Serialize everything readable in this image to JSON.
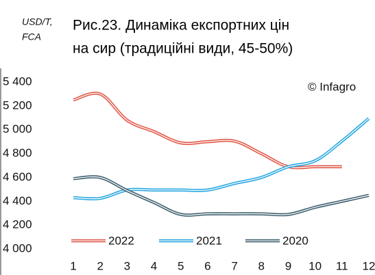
{
  "chart_data": {
    "type": "line",
    "title": [
      "Рис.23. Динаміка експортних цін",
      "на сир (традиційні види, 45-50%)"
    ],
    "y_label": [
      "USD/T,",
      "FCA"
    ],
    "annotation": "© Infagro",
    "categories": [
      "1",
      "2",
      "3",
      "4",
      "5",
      "6",
      "7",
      "8",
      "9",
      "10",
      "11",
      "12"
    ],
    "series": [
      {
        "name": "2022",
        "color": "#e05a4a",
        "values": [
          5250,
          5300,
          5080,
          4985,
          4890,
          4900,
          4905,
          4800,
          4690,
          4690,
          4690,
          null
        ]
      },
      {
        "name": "2021",
        "color": "#29a8e0",
        "values": [
          4430,
          4425,
          4495,
          4495,
          4495,
          4495,
          4550,
          4600,
          4690,
          4740,
          4905,
          5095
        ]
      },
      {
        "name": "2020",
        "color": "#3d5f6e",
        "values": [
          4590,
          4600,
          4490,
          4390,
          4290,
          4295,
          4295,
          4295,
          4290,
          4350,
          4400,
          4450
        ]
      }
    ],
    "ylim": [
      4000,
      5400
    ],
    "yticks": [
      {
        "value": 4000,
        "label": "4 000"
      },
      {
        "value": 4200,
        "label": "4 200"
      },
      {
        "value": 4400,
        "label": "4 400"
      },
      {
        "value": 4600,
        "label": "4 600"
      },
      {
        "value": 4800,
        "label": "4 800"
      },
      {
        "value": 5000,
        "label": "5 000"
      },
      {
        "value": 5200,
        "label": "5 200"
      },
      {
        "value": 5400,
        "label": "5 400"
      }
    ]
  }
}
